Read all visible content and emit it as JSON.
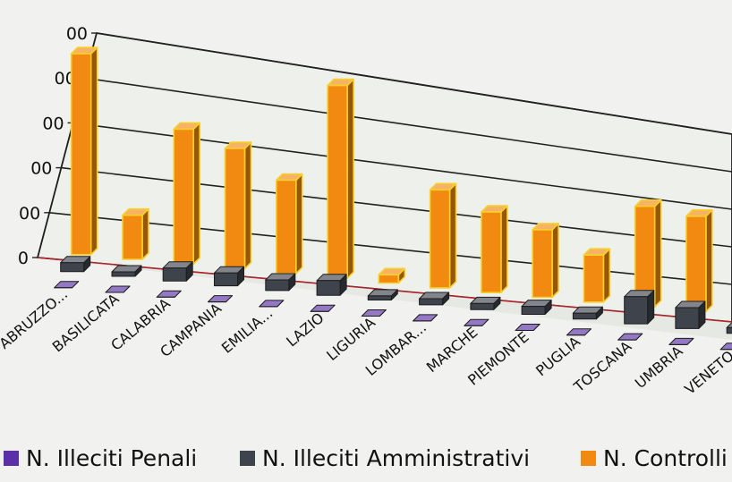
{
  "chart_data": {
    "type": "bar",
    "categories": [
      "ABRUZZO...",
      "BASILICATA",
      "CALABRIA",
      "CAMPANIA",
      "EMILIA...",
      "LAZIO",
      "LIGURIA",
      "LOMBAR...",
      "MARCHE",
      "PIEMONTE",
      "PUGLIA",
      "TOSCANA",
      "UMBRIA",
      "VENETO"
    ],
    "y_ticks": [
      "0",
      "00",
      "00",
      "00",
      "00",
      "00"
    ],
    "series": [
      {
        "name": "N. Illeciti Penali",
        "color": "#5b2fa8",
        "values": [
          0,
          0,
          0,
          0,
          0,
          0,
          0,
          0,
          0,
          0,
          0,
          0,
          0,
          0
        ]
      },
      {
        "name": "N. Illeciti Amministrativi",
        "color": "#3e434c",
        "values": [
          0.2,
          0.1,
          0.3,
          0.3,
          0.25,
          0.35,
          0.1,
          0.15,
          0.15,
          0.2,
          0.15,
          0.7,
          0.55,
          0.15
        ]
      },
      {
        "name": "N. Controlli",
        "color": "#f28a12",
        "values": [
          4.5,
          1.0,
          3.1,
          2.8,
          2.2,
          4.6,
          0.2,
          2.4,
          2.0,
          1.7,
          1.2,
          2.6,
          2.5,
          0.6
        ]
      }
    ],
    "ylim": [
      0,
      5
    ],
    "grid": true,
    "legend_position": "bottom",
    "title": "",
    "xlabel": "",
    "ylabel": ""
  }
}
